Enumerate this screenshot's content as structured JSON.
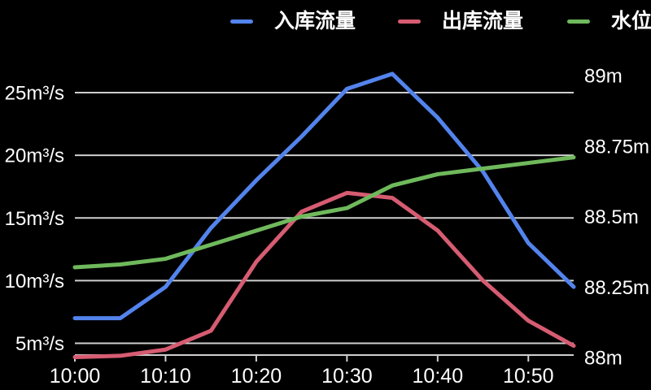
{
  "legend": {
    "items": [
      {
        "key": "inflow",
        "label": "入库流量",
        "color": "#5383EC"
      },
      {
        "key": "outflow",
        "label": "出库流量",
        "color": "#D65C72"
      },
      {
        "key": "water-level",
        "label": "水位",
        "color": "#6FB95C"
      }
    ]
  },
  "chart_data": {
    "type": "line",
    "x": [
      "10:00",
      "10:05",
      "10:10",
      "10:15",
      "10:20",
      "10:25",
      "10:30",
      "10:35",
      "10:40",
      "10:45",
      "10:50",
      "10:55"
    ],
    "x_tick_labels": [
      "10:00",
      "10:10",
      "10:20",
      "10:30",
      "10:40",
      "10:50"
    ],
    "series": [
      {
        "key": "inflow",
        "name": "入库流量",
        "color": "#5383EC",
        "y_axis": "left",
        "values": [
          7,
          7,
          9.5,
          14.2,
          18,
          21.5,
          25.3,
          26.5,
          23,
          18.7,
          13,
          9.5
        ]
      },
      {
        "key": "outflow",
        "name": "出库流量",
        "color": "#D65C72",
        "y_axis": "left",
        "values": [
          3.9,
          4,
          4.5,
          6,
          11.5,
          15.5,
          17,
          16.6,
          14,
          10,
          6.8,
          4.8
        ]
      },
      {
        "key": "water-level",
        "name": "水位",
        "color": "#6FB95C",
        "y_axis": "right",
        "values": [
          88.32,
          88.33,
          88.35,
          88.4,
          88.45,
          88.5,
          88.53,
          88.61,
          88.65,
          88.67,
          88.69,
          88.71
        ]
      }
    ],
    "left_axis": {
      "unit": "m³/s",
      "tick_values": [
        5,
        10,
        15,
        20,
        25
      ],
      "tick_labels": [
        "5m³/s",
        "10m³/s",
        "15m³/s",
        "20m³/s",
        "25m³/s"
      ]
    },
    "right_axis": {
      "unit": "m",
      "tick_values": [
        88,
        88.25,
        88.5,
        88.75,
        89
      ],
      "tick_labels": [
        "88m",
        "88.25m",
        "88.5m",
        "88.75m",
        "89m"
      ],
      "range": [
        88,
        89
      ]
    },
    "grid": true,
    "legend_position": "top",
    "background": "#000000",
    "text_color": "#FFFFFF",
    "grid_color": "#CFCFCF"
  }
}
